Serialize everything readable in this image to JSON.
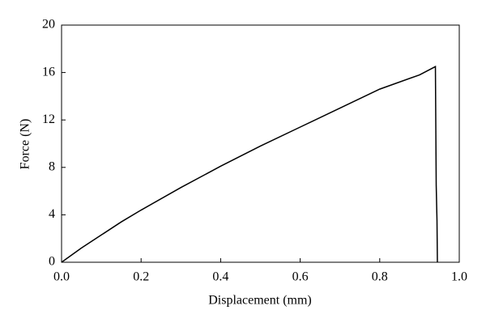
{
  "chart_data": {
    "type": "line",
    "x_label": "Displacement (mm)",
    "y_label": "Force (N)",
    "x": [
      0,
      0.05,
      0.1,
      0.15,
      0.2,
      0.3,
      0.4,
      0.5,
      0.6,
      0.7,
      0.8,
      0.9,
      0.94,
      0.942,
      0.944,
      0.945
    ],
    "series": [
      {
        "color": "#000000",
        "values": [
          0,
          1.2,
          2.3,
          3.4,
          4.4,
          6.3,
          8.1,
          9.8,
          11.4,
          13.0,
          14.6,
          15.8,
          16.5,
          6.5,
          3.5,
          0
        ]
      }
    ],
    "xlim": [
      0,
      1
    ],
    "ylim": [
      0,
      20
    ],
    "xticks": [
      {
        "value": 0,
        "label": "0.0"
      },
      {
        "value": 0.2,
        "label": "0.2"
      },
      {
        "value": 0.4,
        "label": "0.4"
      },
      {
        "value": 0.6,
        "label": "0.6"
      },
      {
        "value": 0.8,
        "label": "0.8"
      },
      {
        "value": 1,
        "label": "1.0"
      }
    ],
    "yticks": [
      0,
      4,
      8,
      12,
      16,
      20
    ],
    "grid": false
  }
}
